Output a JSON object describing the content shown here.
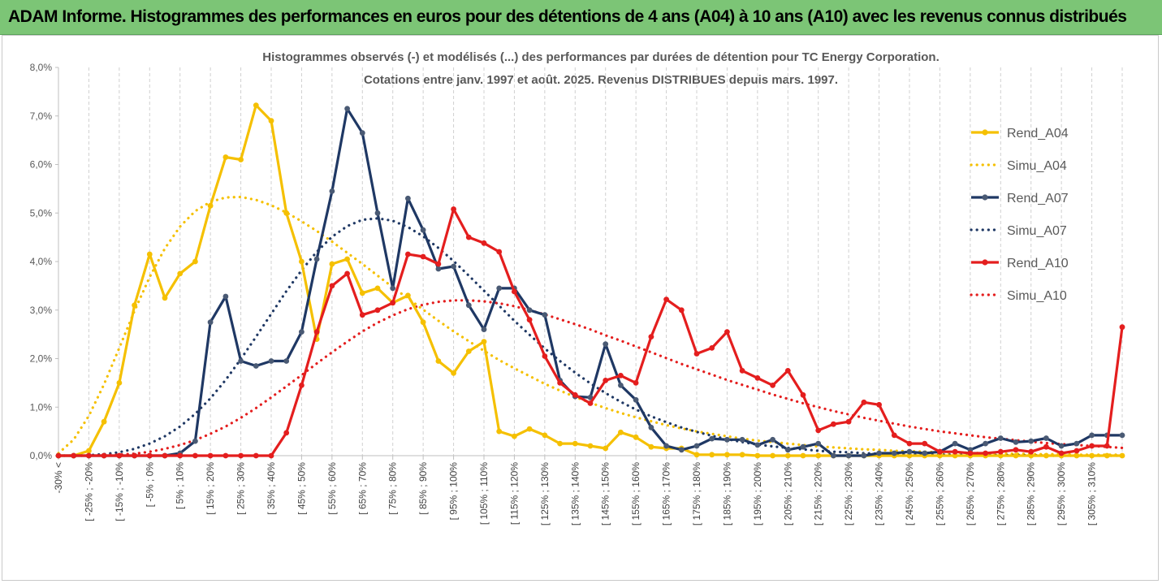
{
  "header": {
    "title": "ADAM Informe. Histogrammes des performances en euros pour des détentions de 4 ans (A04) à 10 ans (A10) avec les revenus connus distribués"
  },
  "chart_data": {
    "type": "line",
    "title": "Histogrammes observés (-) et modélisés (...) des performances par durées de détention pour TC Energy Corporation.",
    "subtitle": "Cotations entre janv. 1997 et août. 2025. Revenus DISTRIBUES depuis mars. 1997.",
    "y_axis": {
      "min": 0,
      "max": 8,
      "step": 1,
      "tick_labels": [
        "0,0%",
        "1,0%",
        "2,0%",
        "3,0%",
        "4,0%",
        "5,0%",
        "6,0%",
        "7,0%",
        "8,0%"
      ]
    },
    "x_tick_labels": [
      "-30% <",
      "[ -25% ; -20%",
      "[ -15% ; -10%",
      "[ -5% ; 0%",
      "[ 5% ; 10%",
      "[ 15% ; 20%",
      "[ 25% ; 30%",
      "[ 35% ; 40%",
      "[ 45% ; 50%",
      "[ 55% ; 60%",
      "[ 65% ; 70%",
      "[ 75% ; 80%",
      "[ 85% ; 90%",
      "[ 95% ; 100%",
      "[ 105% ; 110%",
      "[ 115% ; 120%",
      "[ 125% ; 130%",
      "[ 135% ; 140%",
      "[ 145% ; 150%",
      "[ 155% ; 160%",
      "[ 165% ; 170%",
      "[ 175% ; 180%",
      "[ 185% ; 190%",
      "[ 195% ; 200%",
      "[ 205% ; 210%",
      "[ 215% ; 220%",
      "[ 225% ; 230%",
      "[ 235% ; 240%",
      "[ 245% ; 250%",
      "[ 255% ; 260%",
      "[ 265% ; 270%",
      "[ 275% ; 280%",
      "[ 285% ; 290%",
      "[ 295% ; 300%",
      "[ 305% ; 310%"
    ],
    "legend_position": "right",
    "grid": "vertical-dashed",
    "series": [
      {
        "name": "Rend_A04",
        "style": "solid-marker",
        "color": "#f5c000",
        "values": [
          0,
          0,
          0.1,
          0.7,
          1.5,
          3.1,
          4.15,
          3.25,
          3.75,
          4.0,
          5.15,
          6.15,
          6.1,
          7.22,
          6.9,
          5.0,
          4.0,
          2.4,
          3.95,
          4.05,
          3.35,
          3.45,
          3.15,
          3.3,
          2.75,
          1.95,
          1.7,
          2.15,
          2.35,
          0.5,
          0.4,
          0.55,
          0.42,
          0.25,
          0.25,
          0.2,
          0.15,
          0.48,
          0.38,
          0.18,
          0.15,
          0.15,
          0.02,
          0.02,
          0.02,
          0.02,
          0,
          0,
          0,
          0,
          0,
          0,
          0,
          0,
          0,
          0,
          0,
          0,
          0,
          0,
          0,
          0,
          0,
          0,
          0,
          0,
          0,
          0,
          0,
          0,
          0
        ]
      },
      {
        "name": "Simu_A04",
        "style": "dotted",
        "color": "#f5c000",
        "values": [
          0.05,
          0.33,
          0.82,
          1.47,
          2.22,
          2.98,
          3.68,
          4.27,
          4.72,
          5.04,
          5.23,
          5.32,
          5.33,
          5.27,
          5.16,
          5.01,
          4.83,
          4.63,
          4.41,
          4.18,
          3.95,
          3.71,
          3.47,
          3.24,
          3.01,
          2.78,
          2.56,
          2.36,
          2.16,
          1.97,
          1.8,
          1.64,
          1.48,
          1.34,
          1.21,
          1.09,
          0.98,
          0.88,
          0.79,
          0.71,
          0.63,
          0.56,
          0.5,
          0.45,
          0.4,
          0.35,
          0.31,
          0.28,
          0.25,
          0.22,
          0.19,
          0.17,
          0.15,
          0.13,
          0.12,
          0.1,
          0.09,
          0.08,
          0.07,
          0.06,
          0.06,
          0.05,
          0.04,
          0.04,
          0.03,
          0.03,
          0.03,
          0.02,
          0.02,
          0.02,
          0.02
        ]
      },
      {
        "name": "Rend_A07",
        "style": "solid-marker",
        "color": "#1f3864",
        "values": [
          0,
          0,
          0,
          0,
          0,
          0,
          0,
          0,
          0.05,
          0.3,
          2.75,
          3.28,
          1.95,
          1.85,
          1.95,
          1.95,
          2.55,
          4.05,
          5.45,
          7.15,
          6.65,
          5.0,
          3.45,
          5.3,
          4.65,
          3.85,
          3.9,
          3.1,
          2.6,
          3.45,
          3.45,
          3.0,
          2.9,
          1.55,
          1.22,
          1.2,
          2.3,
          1.45,
          1.15,
          0.58,
          0.2,
          0.12,
          0.2,
          0.35,
          0.33,
          0.33,
          0.22,
          0.33,
          0.12,
          0.18,
          0.25,
          0,
          0,
          0,
          0.05,
          0.05,
          0.08,
          0.05,
          0.08,
          0.25,
          0.12,
          0.25,
          0.36,
          0.28,
          0.3,
          0.36,
          0.2,
          0.25,
          0.42,
          0.42,
          0.42
        ]
      },
      {
        "name": "Simu_A07",
        "style": "dotted",
        "color": "#1f3864",
        "values": [
          0,
          0,
          0.01,
          0.03,
          0.07,
          0.14,
          0.25,
          0.4,
          0.6,
          0.86,
          1.18,
          1.56,
          1.99,
          2.45,
          2.92,
          3.39,
          3.82,
          4.2,
          4.51,
          4.73,
          4.86,
          4.89,
          4.84,
          4.71,
          4.52,
          4.28,
          4.01,
          3.71,
          3.4,
          3.09,
          2.78,
          2.49,
          2.21,
          1.95,
          1.71,
          1.49,
          1.29,
          1.11,
          0.95,
          0.81,
          0.69,
          0.58,
          0.49,
          0.41,
          0.34,
          0.28,
          0.23,
          0.19,
          0.16,
          0.13,
          0.1,
          0.08,
          0.07,
          0.05,
          0.04,
          0.04,
          0.03,
          0.02,
          0.02,
          0.02,
          0.01,
          0.01,
          0.01,
          0.01,
          0.01,
          0,
          0,
          0,
          0,
          0,
          0
        ]
      },
      {
        "name": "Rend_A10",
        "style": "solid-marker",
        "color": "#e41e1e",
        "values": [
          0,
          0,
          0,
          0,
          0,
          0,
          0,
          0,
          0,
          0,
          0,
          0,
          0,
          0,
          0,
          0.47,
          1.45,
          2.55,
          3.5,
          3.75,
          2.9,
          3.0,
          3.15,
          4.15,
          4.1,
          3.95,
          5.08,
          4.5,
          4.38,
          4.2,
          3.38,
          2.8,
          2.05,
          1.5,
          1.25,
          1.08,
          1.55,
          1.65,
          1.5,
          2.45,
          3.22,
          3.0,
          2.1,
          2.22,
          2.55,
          1.75,
          1.6,
          1.45,
          1.75,
          1.25,
          0.52,
          0.65,
          0.7,
          1.1,
          1.05,
          0.42,
          0.25,
          0.25,
          0.08,
          0.08,
          0.05,
          0.05,
          0.08,
          0.12,
          0.08,
          0.18,
          0.05,
          0.1,
          0.2,
          0.2,
          2.65
        ]
      },
      {
        "name": "Simu_A10",
        "style": "dotted",
        "color": "#e41e1e",
        "values": [
          0,
          0,
          0,
          0.01,
          0.02,
          0.04,
          0.08,
          0.14,
          0.22,
          0.32,
          0.45,
          0.6,
          0.78,
          0.98,
          1.2,
          1.43,
          1.66,
          1.9,
          2.13,
          2.35,
          2.56,
          2.74,
          2.89,
          3.02,
          3.11,
          3.17,
          3.2,
          3.2,
          3.18,
          3.14,
          3.08,
          3.0,
          2.91,
          2.81,
          2.71,
          2.6,
          2.48,
          2.37,
          2.25,
          2.13,
          2.01,
          1.89,
          1.78,
          1.67,
          1.56,
          1.46,
          1.36,
          1.26,
          1.17,
          1.08,
          1.0,
          0.92,
          0.85,
          0.78,
          0.72,
          0.66,
          0.6,
          0.55,
          0.5,
          0.46,
          0.42,
          0.38,
          0.35,
          0.32,
          0.29,
          0.26,
          0.24,
          0.22,
          0.2,
          0.18,
          0.16
        ]
      }
    ]
  }
}
